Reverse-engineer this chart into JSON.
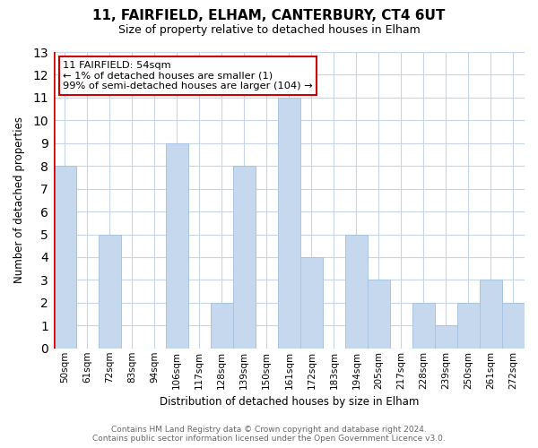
{
  "title": "11, FAIRFIELD, ELHAM, CANTERBURY, CT4 6UT",
  "subtitle": "Size of property relative to detached houses in Elham",
  "xlabel": "Distribution of detached houses by size in Elham",
  "ylabel": "Number of detached properties",
  "categories": [
    "50sqm",
    "61sqm",
    "72sqm",
    "83sqm",
    "94sqm",
    "106sqm",
    "117sqm",
    "128sqm",
    "139sqm",
    "150sqm",
    "161sqm",
    "172sqm",
    "183sqm",
    "194sqm",
    "205sqm",
    "217sqm",
    "228sqm",
    "239sqm",
    "250sqm",
    "261sqm",
    "272sqm"
  ],
  "values": [
    8,
    0,
    5,
    0,
    0,
    9,
    0,
    2,
    8,
    0,
    11,
    4,
    0,
    5,
    3,
    0,
    2,
    1,
    2,
    3,
    2
  ],
  "bar_color": "#c5d8ed",
  "bar_edge_color": "#a8c4e0",
  "ylim": [
    0,
    13
  ],
  "yticks": [
    0,
    1,
    2,
    3,
    4,
    5,
    6,
    7,
    8,
    9,
    10,
    11,
    12,
    13
  ],
  "annotation_title": "11 FAIRFIELD: 54sqm",
  "annotation_line1": "← 1% of detached houses are smaller (1)",
  "annotation_line2": "99% of semi-detached houses are larger (104) →",
  "annotation_box_color": "#ffffff",
  "annotation_box_edge": "#cc0000",
  "red_line_color": "#cc0000",
  "footer1": "Contains HM Land Registry data © Crown copyright and database right 2024.",
  "footer2": "Contains public sector information licensed under the Open Government Licence v3.0.",
  "bg_color": "#ffffff",
  "grid_color": "#c8d4e8"
}
